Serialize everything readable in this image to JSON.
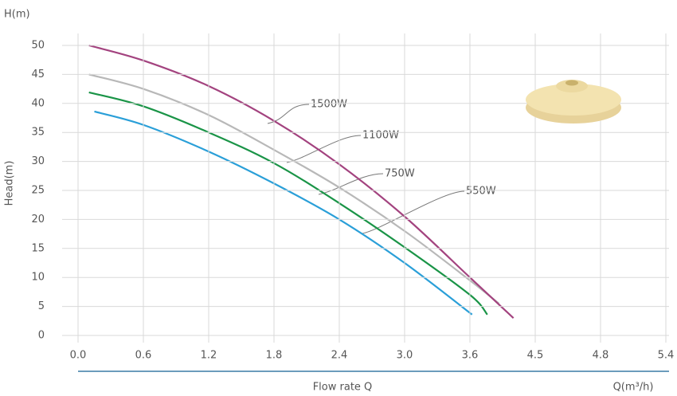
{
  "chart_data": {
    "type": "line",
    "y_axis_unit": "H(m)",
    "ylabel": "Head(m)",
    "xlabel": "Flow rate Q",
    "x_axis_unit": "Q(m³/h)",
    "xlim": [
      0,
      5.4
    ],
    "ylim": [
      0,
      50
    ],
    "xticks": [
      {
        "value": 0,
        "label": "0.0"
      },
      0.6,
      1.2,
      1.8,
      2.4,
      {
        "value": 3,
        "label": "3.0"
      },
      3.6,
      4.5,
      4.8,
      5.4
    ],
    "yticks": [
      0,
      5,
      10,
      15,
      20,
      25,
      30,
      35,
      40,
      45,
      50
    ],
    "grid": true,
    "series": [
      {
        "name": "1500W",
        "color": "#a3437f",
        "x": [
          0.1,
          0.6,
          1.2,
          1.8,
          2.4,
          3.0,
          3.6,
          4.2
        ],
        "values": [
          50,
          47.4,
          43,
          37,
          29.5,
          20.5,
          10,
          3
        ]
      },
      {
        "name": "1100W",
        "color": "#b8b8b8",
        "x": [
          0.1,
          0.6,
          1.2,
          1.8,
          2.4,
          3.0,
          3.6,
          4.0
        ],
        "values": [
          45,
          42.5,
          38,
          32,
          25.5,
          18,
          9.5,
          5.5
        ]
      },
      {
        "name": "750W",
        "color": "#1a9447",
        "x": [
          0.1,
          0.6,
          1.2,
          1.8,
          2.4,
          3.0,
          3.6,
          3.84
        ],
        "values": [
          41.9,
          39.5,
          35,
          29.7,
          22.8,
          15.2,
          7,
          3.6
        ]
      },
      {
        "name": "550W",
        "color": "#2a9fd8",
        "x": [
          0.15,
          0.6,
          1.2,
          1.8,
          2.4,
          3.0,
          3.63
        ],
        "values": [
          38.6,
          36.3,
          31.7,
          26.2,
          20,
          12.5,
          3.6
        ]
      }
    ]
  }
}
